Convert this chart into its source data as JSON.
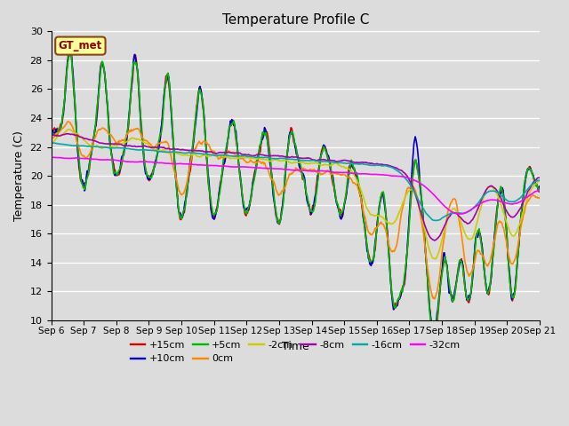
{
  "title": "Temperature Profile C",
  "xlabel": "Time",
  "ylabel": "Temperature (C)",
  "ylim": [
    10,
    30
  ],
  "xlim": [
    0,
    360
  ],
  "plot_bg_color": "#dcdcdc",
  "grid_color": "#ffffff",
  "series": [
    {
      "label": "+15cm",
      "color": "#dd0000",
      "lw": 1.2
    },
    {
      "label": "+10cm",
      "color": "#0000cc",
      "lw": 1.2
    },
    {
      "label": "+5cm",
      "color": "#00bb00",
      "lw": 1.2
    },
    {
      "label": "0cm",
      "color": "#ff8800",
      "lw": 1.2
    },
    {
      "label": "-2cm",
      "color": "#cccc00",
      "lw": 1.2
    },
    {
      "label": "-8cm",
      "color": "#aa00aa",
      "lw": 1.2
    },
    {
      "label": "-16cm",
      "color": "#00aaaa",
      "lw": 1.2
    },
    {
      "label": "-32cm",
      "color": "#ff00ff",
      "lw": 1.2
    }
  ],
  "xtick_labels": [
    "Sep 6",
    "Sep 7",
    "Sep 8",
    "Sep 9",
    "Sep 10",
    "Sep 11",
    "Sep 12",
    "Sep 13",
    "Sep 14",
    "Sep 15",
    "Sep 16",
    "Sep 17",
    "Sep 18",
    "Sep 19",
    "Sep 20",
    "Sep 21"
  ],
  "ytick_labels": [
    10,
    12,
    14,
    16,
    18,
    20,
    22,
    24,
    26,
    28,
    30
  ],
  "legend_label": "GT_met",
  "legend_bg": "#ffff99",
  "legend_border": "#8b4513"
}
